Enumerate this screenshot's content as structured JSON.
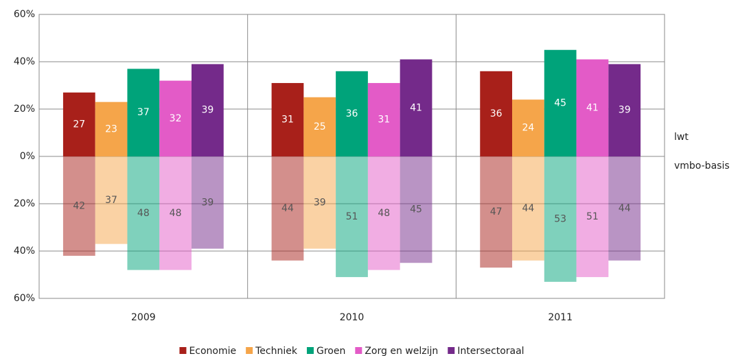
{
  "chart_data": {
    "type": "diverging_bar",
    "categories": [
      "2009",
      "2010",
      "2011"
    ],
    "side_labels": [
      "lwt",
      "vmbo-basis"
    ],
    "series": [
      {
        "name": "Economie",
        "color": "#a8201a",
        "values": [
          27,
          31,
          36
        ],
        "lower": {
          "opacity": 0.5,
          "values": [
            -42,
            -44,
            -47
          ],
          "value_labels": [
            "42",
            "44",
            "47"
          ]
        }
      },
      {
        "name": "Techniek",
        "color": "#f5a54a",
        "values": [
          23,
          25,
          24
        ],
        "lower": {
          "opacity": 0.5,
          "values": [
            -37,
            -39,
            -44
          ],
          "value_labels": [
            "37",
            "39",
            "44"
          ]
        }
      },
      {
        "name": "Groen",
        "color": "#00a37a",
        "values": [
          37,
          36,
          45
        ],
        "lower": {
          "opacity": 0.5,
          "values": [
            -48,
            -51,
            -53
          ],
          "value_labels": [
            "48",
            "51",
            "53"
          ]
        }
      },
      {
        "name": "Zorg en welzijn",
        "color": "#e35bc7",
        "values": [
          32,
          31,
          41
        ],
        "lower": {
          "opacity": 0.5,
          "values": [
            -48,
            -48,
            -51
          ],
          "value_labels": [
            "48",
            "48",
            "51"
          ]
        }
      },
      {
        "name": "Intersectoraal",
        "color": "#742a8a",
        "values": [
          39,
          41,
          39
        ],
        "lower": {
          "opacity": 0.5,
          "values": [
            -39,
            -45,
            -44
          ],
          "value_labels": [
            "39",
            "45",
            "44"
          ]
        }
      }
    ],
    "ylim": [
      -60,
      60
    ],
    "yticks": [
      {
        "value": -60,
        "label": "60%"
      },
      {
        "value": -40,
        "label": "40%"
      },
      {
        "value": -20,
        "label": "20%"
      },
      {
        "value": 0,
        "label": "0%"
      },
      {
        "value": 20,
        "label": "20%"
      },
      {
        "value": 40,
        "label": "40%"
      },
      {
        "value": 60,
        "label": "60%"
      }
    ],
    "grid": true,
    "legend": "bottom"
  }
}
